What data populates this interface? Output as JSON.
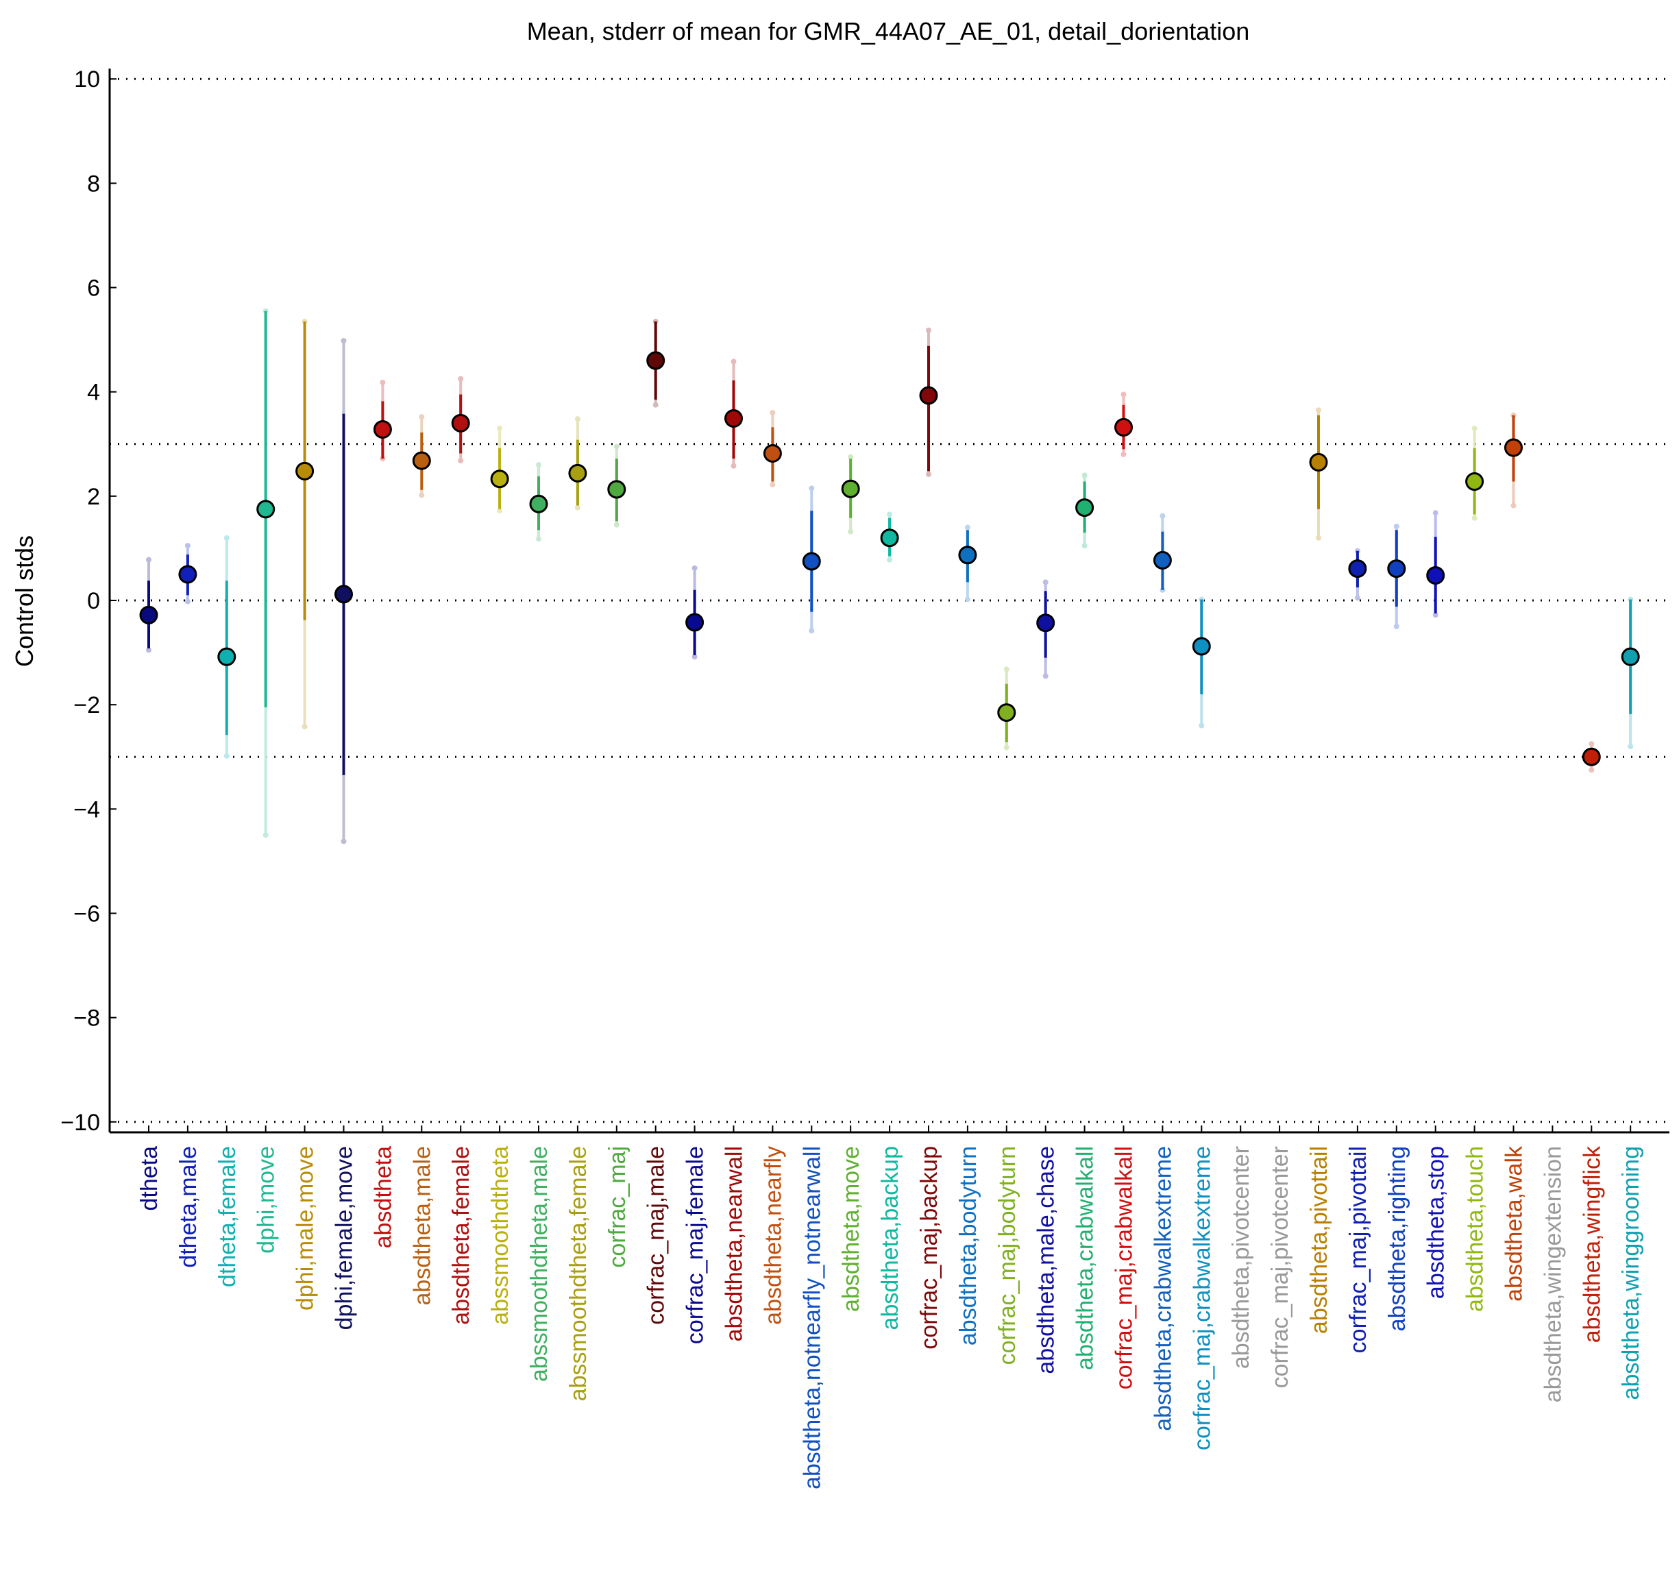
{
  "chart_data": {
    "type": "scatter",
    "title": "Mean, stderr of mean for GMR_44A07_AE_01, detail_dorientation",
    "xlabel": "",
    "ylabel": "Control stds",
    "ylim": [
      -10.2,
      10.2
    ],
    "yticks": [
      10,
      8,
      6,
      4,
      2,
      0,
      -2,
      -4,
      -6,
      -8,
      -10
    ],
    "ytick_labels": [
      "10",
      "8",
      "6",
      "4",
      "2",
      "0",
      "−2",
      "−4",
      "−6",
      "−8",
      "−10"
    ],
    "reference_lines": [
      10,
      3,
      0,
      -3,
      -10
    ],
    "grid": false,
    "legend": "none",
    "categories": [
      "dtheta",
      "dtheta,male",
      "dtheta,female",
      "dphi,move",
      "dphi,male,move",
      "dphi,female,move",
      "absdtheta",
      "absdtheta,male",
      "absdtheta,female",
      "abssmoothdtheta",
      "abssmoothdtheta,male",
      "abssmoothdtheta,female",
      "corfrac_maj",
      "corfrac_maj,male",
      "corfrac_maj,female",
      "absdtheta,nearwall",
      "absdtheta,nearfly",
      "absdtheta,notnearfly_notnearwall",
      "absdtheta,move",
      "absdtheta,backup",
      "corfrac_maj,backup",
      "absdtheta,bodyturn",
      "corfrac_maj,bodyturn",
      "absdtheta,male,chase",
      "absdtheta,crabwalkall",
      "corfrac_maj,crabwalkall",
      "absdtheta,crabwalkextreme",
      "corfrac_maj,crabwalkextreme",
      "absdtheta,pivotcenter",
      "corfrac_maj,pivotcenter",
      "absdtheta,pivottail",
      "corfrac_maj,pivottail",
      "absdtheta,righting",
      "absdtheta,stop",
      "absdtheta,touch",
      "absdtheta,walk",
      "absdtheta,wingextension",
      "absdtheta,wingflick",
      "absdtheta,winggrooming"
    ],
    "colors": [
      "#0a0a80",
      "#1020b8",
      "#10b0b0",
      "#20b890",
      "#b88c08",
      "#101060",
      "#c01010",
      "#b86010",
      "#b01010",
      "#b8b010",
      "#40b060",
      "#a8a010",
      "#50a840",
      "#600808",
      "#0a0a90",
      "#a00808",
      "#c05010",
      "#1050c0",
      "#60b030",
      "#10b8a0",
      "#800808",
      "#1070c0",
      "#80b020",
      "#1010a0",
      "#20b070",
      "#d01010",
      "#1060c0",
      "#1090c0",
      "#999999",
      "#999999",
      "#b88000",
      "#1020b0",
      "#1040c0",
      "#1010b8",
      "#90b810",
      "#c04008",
      "#999999",
      "#c02008",
      "#10a0b0"
    ],
    "mean": [
      -0.28,
      0.5,
      -1.08,
      1.75,
      2.48,
      0.12,
      3.28,
      2.68,
      3.4,
      2.33,
      1.85,
      2.44,
      2.13,
      4.6,
      -0.42,
      3.49,
      2.82,
      0.75,
      2.14,
      1.2,
      3.93,
      0.87,
      -2.15,
      -0.43,
      1.78,
      3.32,
      0.77,
      -0.88,
      null,
      null,
      2.65,
      0.61,
      0.61,
      0.48,
      2.28,
      2.93,
      null,
      -3.0,
      -1.08
    ],
    "stderr_lower": [
      -0.92,
      0.1,
      -2.58,
      -2.05,
      -0.38,
      -3.35,
      2.72,
      2.12,
      2.82,
      1.75,
      1.35,
      1.82,
      1.52,
      3.85,
      -1.05,
      2.72,
      2.28,
      -0.22,
      1.58,
      0.85,
      2.48,
      0.35,
      -2.72,
      -1.1,
      1.3,
      2.9,
      0.2,
      -1.8,
      null,
      null,
      1.75,
      0.25,
      -0.12,
      -0.25,
      1.65,
      2.28,
      null,
      -3.15,
      -2.18
    ],
    "stderr_upper": [
      0.38,
      0.88,
      0.38,
      5.55,
      5.35,
      3.58,
      3.82,
      3.22,
      3.95,
      2.92,
      2.38,
      3.08,
      2.72,
      5.35,
      0.2,
      4.22,
      3.32,
      1.72,
      2.72,
      1.58,
      4.88,
      1.35,
      -1.6,
      0.18,
      2.28,
      3.75,
      1.32,
      0.02,
      null,
      null,
      3.55,
      0.95,
      1.35,
      1.22,
      2.92,
      3.55,
      null,
      -2.85,
      0.02
    ],
    "range_lower": [
      -0.95,
      -0.02,
      -2.98,
      -4.5,
      -2.42,
      -4.62,
      2.72,
      2.02,
      2.68,
      1.72,
      1.18,
      1.78,
      1.45,
      3.75,
      -1.08,
      2.58,
      2.22,
      -0.58,
      1.32,
      0.78,
      2.42,
      0.02,
      -2.82,
      -1.45,
      1.05,
      2.8,
      0.2,
      -2.4,
      null,
      null,
      1.2,
      0.05,
      -0.5,
      -0.28,
      1.58,
      1.82,
      null,
      -3.25,
      -2.8
    ],
    "range_upper": [
      0.78,
      1.05,
      1.2,
      5.55,
      5.35,
      4.98,
      4.18,
      3.52,
      4.25,
      3.3,
      2.6,
      3.48,
      2.95,
      5.35,
      0.62,
      4.58,
      3.6,
      2.15,
      2.75,
      1.65,
      5.18,
      1.4,
      -1.32,
      0.35,
      2.4,
      3.95,
      1.62,
      0.02,
      null,
      null,
      3.65,
      0.95,
      1.42,
      1.68,
      3.3,
      3.55,
      null,
      -2.75,
      0.02
    ]
  }
}
